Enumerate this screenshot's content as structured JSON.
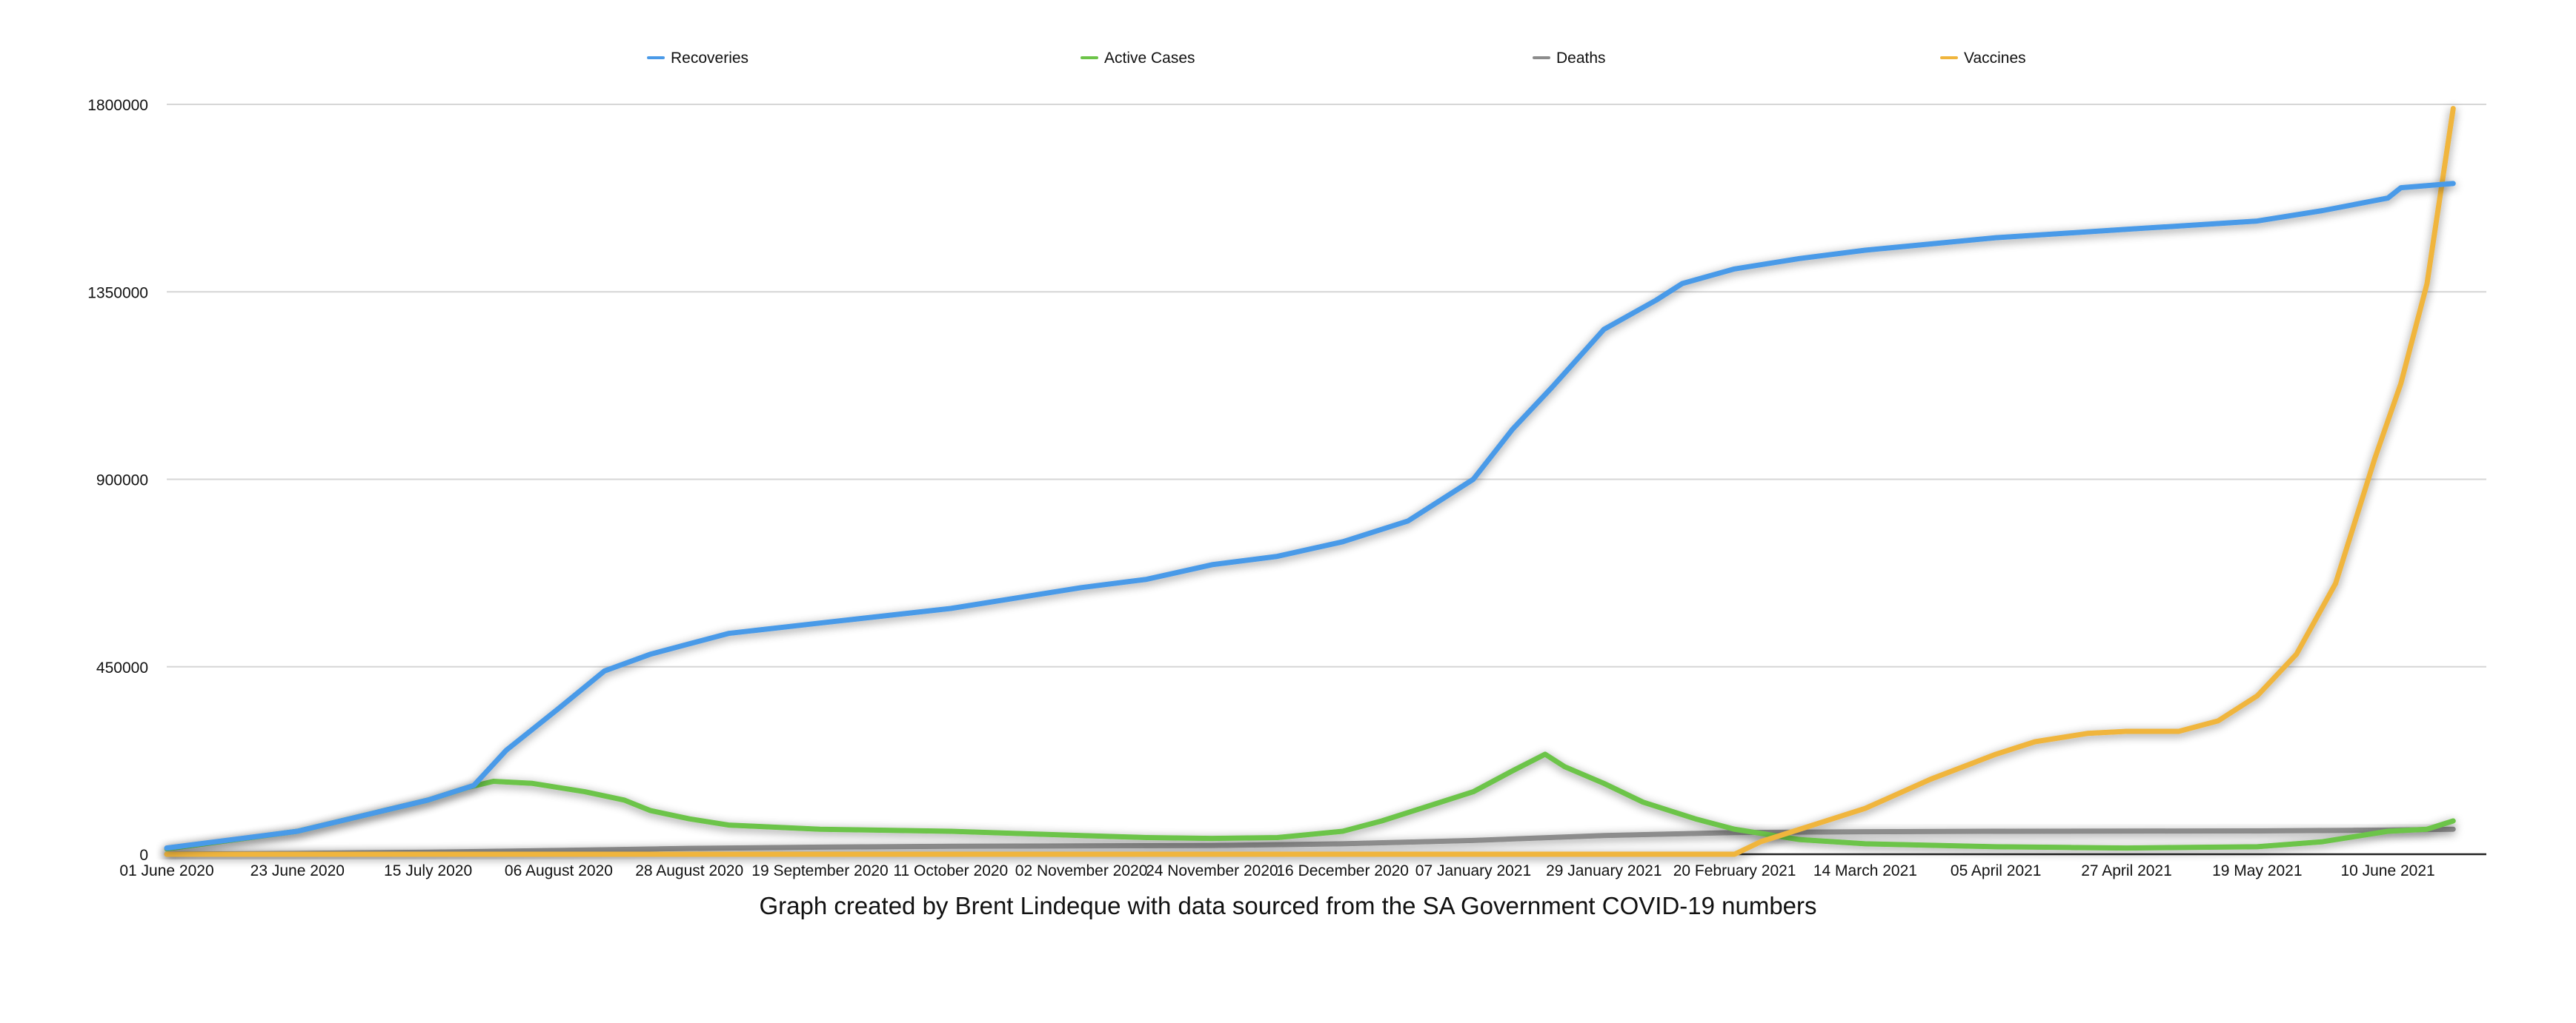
{
  "chart_data": {
    "type": "line",
    "caption": "Graph created by Brent Lindeque with data sourced from the SA Government COVID-19 numbers",
    "ylim": [
      0,
      1800000
    ],
    "yticks": [
      0,
      450000,
      900000,
      1350000,
      1800000
    ],
    "x_tick_labels": [
      "01 June 2020",
      "23 June 2020",
      "15 July 2020",
      "06 August 2020",
      "28 August 2020",
      "19 September 2020",
      "11 October 2020",
      "02 November 2020",
      "24 November 2020",
      "16 December 2020",
      "07 January 2021",
      "29 January 2021",
      "20 February 2021",
      "14 March 2021",
      "05 April 2021",
      "27 April 2021",
      "19 May 2021",
      "10 June 2021"
    ],
    "grid": "horizontal",
    "legend": "top",
    "series": [
      {
        "name": "Recoveries",
        "color": "#4a9ae8",
        "points": [
          [
            0,
            15000
          ],
          [
            1,
            55000
          ],
          [
            2,
            130000
          ],
          [
            2.35,
            165000
          ],
          [
            2.6,
            250000
          ],
          [
            3,
            350000
          ],
          [
            3.35,
            440000
          ],
          [
            3.7,
            480000
          ],
          [
            4,
            505000
          ],
          [
            4.3,
            530000
          ],
          [
            5,
            555000
          ],
          [
            6,
            590000
          ],
          [
            7,
            640000
          ],
          [
            7.5,
            660000
          ],
          [
            8,
            695000
          ],
          [
            8.5,
            715000
          ],
          [
            9,
            750000
          ],
          [
            9.5,
            800000
          ],
          [
            10,
            900000
          ],
          [
            10.3,
            1020000
          ],
          [
            10.6,
            1120000
          ],
          [
            11,
            1260000
          ],
          [
            11.4,
            1330000
          ],
          [
            11.6,
            1370000
          ],
          [
            12,
            1405000
          ],
          [
            12.5,
            1430000
          ],
          [
            13,
            1450000
          ],
          [
            14,
            1480000
          ],
          [
            15,
            1500000
          ],
          [
            16,
            1520000
          ],
          [
            16.5,
            1545000
          ],
          [
            17,
            1575000
          ],
          [
            17.1,
            1600000
          ],
          [
            17.5,
            1610000
          ]
        ]
      },
      {
        "name": "Active Cases",
        "color": "#6cc448",
        "points": [
          [
            0,
            13000
          ],
          [
            1,
            55000
          ],
          [
            2,
            130000
          ],
          [
            2.3,
            160000
          ],
          [
            2.5,
            175000
          ],
          [
            2.8,
            170000
          ],
          [
            3.2,
            150000
          ],
          [
            3.5,
            130000
          ],
          [
            3.7,
            105000
          ],
          [
            4,
            85000
          ],
          [
            4.3,
            70000
          ],
          [
            5,
            60000
          ],
          [
            6,
            55000
          ],
          [
            7,
            45000
          ],
          [
            7.5,
            40000
          ],
          [
            8,
            38000
          ],
          [
            8.5,
            40000
          ],
          [
            9,
            55000
          ],
          [
            9.3,
            80000
          ],
          [
            9.7,
            120000
          ],
          [
            10,
            150000
          ],
          [
            10.3,
            200000
          ],
          [
            10.55,
            240000
          ],
          [
            10.7,
            210000
          ],
          [
            11,
            170000
          ],
          [
            11.3,
            125000
          ],
          [
            11.7,
            85000
          ],
          [
            12,
            60000
          ],
          [
            12.5,
            35000
          ],
          [
            13,
            25000
          ],
          [
            14,
            18000
          ],
          [
            15,
            15000
          ],
          [
            16,
            18000
          ],
          [
            16.5,
            30000
          ],
          [
            17,
            55000
          ],
          [
            17.3,
            60000
          ],
          [
            17.5,
            80000
          ]
        ]
      },
      {
        "name": "Deaths",
        "color": "#8c8c8c",
        "points": [
          [
            0,
            100
          ],
          [
            1,
            2000
          ],
          [
            2,
            5000
          ],
          [
            3,
            9000
          ],
          [
            4,
            14000
          ],
          [
            5,
            17000
          ],
          [
            6,
            19000
          ],
          [
            7,
            20000
          ],
          [
            8,
            21000
          ],
          [
            9,
            25000
          ],
          [
            10,
            33000
          ],
          [
            11,
            45000
          ],
          [
            12,
            52000
          ],
          [
            13,
            54000
          ],
          [
            14,
            55000
          ],
          [
            15,
            55500
          ],
          [
            16,
            56000
          ],
          [
            17,
            58000
          ],
          [
            17.5,
            60000
          ]
        ]
      },
      {
        "name": "Vaccines",
        "color": "#f0b53c",
        "points": [
          [
            0,
            0
          ],
          [
            11,
            0
          ],
          [
            12,
            0
          ],
          [
            12.2,
            30000
          ],
          [
            12.6,
            70000
          ],
          [
            13,
            110000
          ],
          [
            13.5,
            180000
          ],
          [
            14,
            240000
          ],
          [
            14.3,
            270000
          ],
          [
            14.7,
            290000
          ],
          [
            15,
            295000
          ],
          [
            15.4,
            295000
          ],
          [
            15.7,
            320000
          ],
          [
            16,
            380000
          ],
          [
            16.3,
            480000
          ],
          [
            16.6,
            650000
          ],
          [
            16.9,
            950000
          ],
          [
            17.1,
            1130000
          ],
          [
            17.3,
            1370000
          ],
          [
            17.5,
            1790000
          ]
        ]
      }
    ]
  }
}
